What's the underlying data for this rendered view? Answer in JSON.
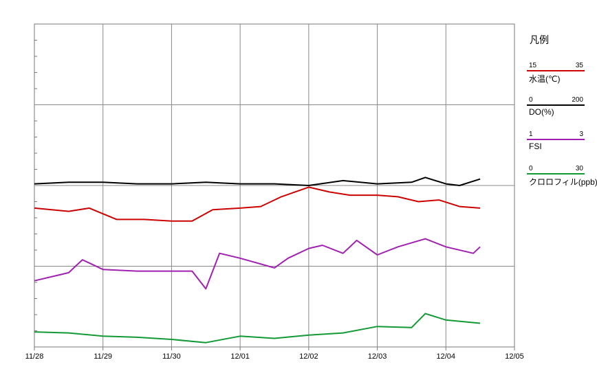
{
  "chart_data": {
    "type": "line",
    "x_axis": {
      "tick_labels": [
        "11/28",
        "11/29",
        "11/30",
        "12/01",
        "12/02",
        "12/03",
        "12/04",
        "12/05"
      ],
      "range_days": [
        0,
        7
      ]
    },
    "grid": true,
    "legend_position": "right",
    "legend": {
      "title": "凡例",
      "items": [
        {
          "key": "temp",
          "name": "水温(℃)",
          "min": "15",
          "max": "35",
          "color": "#cc0000"
        },
        {
          "key": "do",
          "name": "DO(%)",
          "min": "0",
          "max": "200",
          "color": "#000000"
        },
        {
          "key": "fsi",
          "name": "FSI",
          "min": "1",
          "max": "3",
          "color": "#a020b0"
        },
        {
          "key": "chl",
          "name": "クロロフィル(ppb)",
          "min": "0",
          "max": "30",
          "color": "#119933"
        }
      ]
    },
    "series": [
      {
        "key": "do",
        "ylim": [
          0,
          200
        ],
        "x": [
          0,
          0.5,
          1,
          1.5,
          2,
          2.5,
          3,
          3.5,
          4,
          4.5,
          5,
          5.5,
          5.7,
          6,
          6.2,
          6.5
        ],
        "y": [
          101,
          102,
          102,
          101,
          101,
          102,
          101,
          101,
          100,
          103,
          101,
          102,
          105,
          101,
          100,
          104
        ]
      },
      {
        "key": "fsi",
        "ylim": [
          1,
          3
        ],
        "x": [
          0,
          0.3,
          0.5,
          0.7,
          1,
          1.5,
          2,
          2.3,
          2.5,
          2.7,
          3,
          3.5,
          3.7,
          4,
          4.2,
          4.5,
          4.7,
          5,
          5.3,
          5.7,
          6,
          6.4,
          6.5
        ],
        "y": [
          1.41,
          1.44,
          1.46,
          1.54,
          1.48,
          1.47,
          1.47,
          1.47,
          1.36,
          1.58,
          1.55,
          1.49,
          1.55,
          1.61,
          1.63,
          1.58,
          1.66,
          1.57,
          1.62,
          1.67,
          1.62,
          1.58,
          1.62
        ]
      },
      {
        "key": "temp",
        "ylim": [
          15,
          35
        ],
        "x": [
          0,
          0.5,
          0.8,
          1.2,
          1.6,
          2,
          2.3,
          2.6,
          3,
          3.3,
          3.6,
          4,
          4.3,
          4.6,
          5,
          5.3,
          5.6,
          5.9,
          6.2,
          6.5
        ],
        "y": [
          23.6,
          23.4,
          23.6,
          22.9,
          22.9,
          22.8,
          22.8,
          23.5,
          23.6,
          23.7,
          24.3,
          24.9,
          24.6,
          24.4,
          24.4,
          24.3,
          24.0,
          24.1,
          23.7,
          23.6
        ]
      },
      {
        "key": "chl",
        "ylim": [
          0,
          30
        ],
        "x": [
          0,
          0.5,
          1,
          1.5,
          2,
          2.5,
          2.5,
          3,
          3.5,
          4,
          4.5,
          5,
          5.5,
          5.7,
          6,
          6.5
        ],
        "y": [
          1.4,
          1.3,
          1.0,
          0.9,
          0.7,
          0.4,
          0.4,
          1.0,
          0.8,
          1.1,
          1.3,
          1.9,
          1.8,
          3.1,
          2.5,
          2.2
        ]
      }
    ]
  }
}
